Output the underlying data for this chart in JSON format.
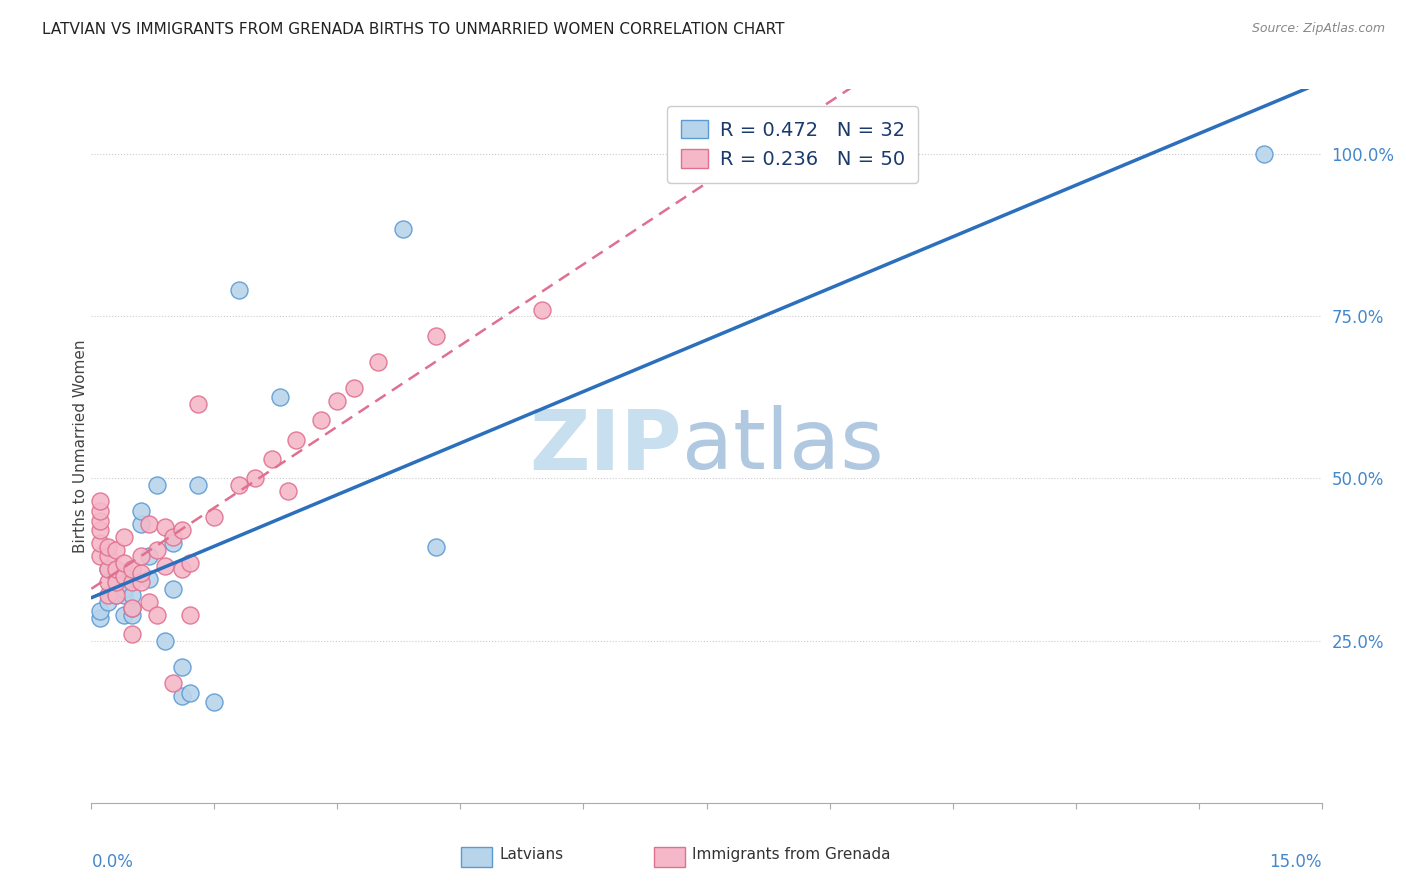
{
  "title": "LATVIAN VS IMMIGRANTS FROM GRENADA BIRTHS TO UNMARRIED WOMEN CORRELATION CHART",
  "source": "Source: ZipAtlas.com",
  "ylabel": "Births to Unmarried Women",
  "ylabel_right_ticks": [
    "25.0%",
    "50.0%",
    "75.0%",
    "100.0%"
  ],
  "ylabel_right_vals": [
    0.25,
    0.5,
    0.75,
    1.0
  ],
  "xmin": 0.0,
  "xmax": 0.15,
  "ymin": 0.0,
  "ymax": 1.1,
  "legend_entry1": "R = 0.472   N = 32",
  "legend_entry2": "R = 0.236   N = 50",
  "latvian_fill": "#b8d4ea",
  "latvian_edge": "#5b9bd5",
  "grenada_fill": "#f4b8c8",
  "grenada_edge": "#e07090",
  "latvian_line_color": "#2b6fbd",
  "grenada_line_color": "#e07090",
  "watermark_zip": "ZIP",
  "watermark_atlas": "atlas",
  "latvians_label": "Latvians",
  "grenada_label": "Immigrants from Grenada",
  "latvians_x": [
    0.001,
    0.001,
    0.002,
    0.002,
    0.003,
    0.003,
    0.003,
    0.003,
    0.004,
    0.004,
    0.004,
    0.005,
    0.005,
    0.005,
    0.006,
    0.006,
    0.007,
    0.007,
    0.008,
    0.009,
    0.01,
    0.01,
    0.011,
    0.011,
    0.012,
    0.013,
    0.015,
    0.018,
    0.023,
    0.038,
    0.042,
    0.143
  ],
  "latvians_y": [
    0.285,
    0.295,
    0.31,
    0.36,
    0.32,
    0.34,
    0.345,
    0.35,
    0.29,
    0.32,
    0.33,
    0.29,
    0.3,
    0.32,
    0.43,
    0.45,
    0.345,
    0.38,
    0.49,
    0.25,
    0.4,
    0.33,
    0.21,
    0.165,
    0.17,
    0.49,
    0.155,
    0.79,
    0.625,
    0.885,
    0.395,
    1.0
  ],
  "grenada_x": [
    0.001,
    0.001,
    0.001,
    0.001,
    0.001,
    0.001,
    0.002,
    0.002,
    0.002,
    0.002,
    0.002,
    0.003,
    0.003,
    0.003,
    0.003,
    0.004,
    0.004,
    0.004,
    0.005,
    0.005,
    0.005,
    0.005,
    0.006,
    0.006,
    0.006,
    0.007,
    0.007,
    0.008,
    0.008,
    0.009,
    0.009,
    0.01,
    0.01,
    0.011,
    0.011,
    0.012,
    0.012,
    0.013,
    0.015,
    0.018,
    0.02,
    0.022,
    0.024,
    0.025,
    0.028,
    0.03,
    0.032,
    0.035,
    0.042,
    0.055
  ],
  "grenada_y": [
    0.38,
    0.4,
    0.42,
    0.435,
    0.45,
    0.465,
    0.32,
    0.34,
    0.36,
    0.38,
    0.395,
    0.32,
    0.34,
    0.36,
    0.39,
    0.35,
    0.37,
    0.41,
    0.26,
    0.3,
    0.34,
    0.36,
    0.34,
    0.355,
    0.38,
    0.31,
    0.43,
    0.29,
    0.39,
    0.365,
    0.425,
    0.185,
    0.41,
    0.36,
    0.42,
    0.29,
    0.37,
    0.615,
    0.44,
    0.49,
    0.5,
    0.53,
    0.48,
    0.56,
    0.59,
    0.62,
    0.64,
    0.68,
    0.72,
    0.76
  ]
}
